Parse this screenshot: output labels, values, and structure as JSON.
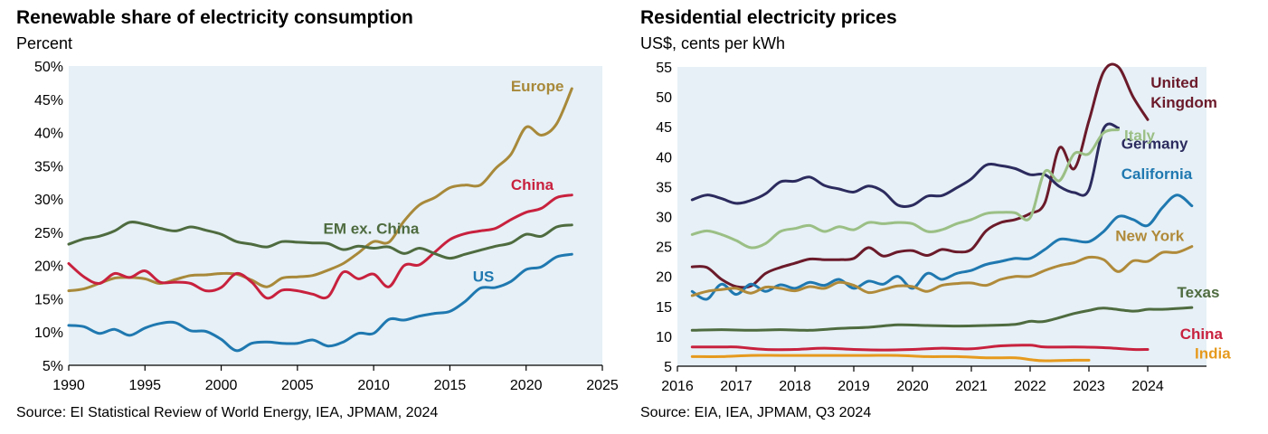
{
  "left": {
    "title": "Renewable share of electricity consumption",
    "subtitle": "Percent",
    "source": "Source: EI Statistical Review of World Energy, IEA, JPMAM, 2024"
  },
  "right": {
    "title": "Residential electricity prices",
    "subtitle": "US$, cents per kWh",
    "source": "Source: EIA, IEA, JPMAM, Q3 2024"
  },
  "colors": {
    "plot_bg": "#e6f0f6",
    "europe": "#a8893a",
    "china": "#c8213e",
    "em_ex_china": "#4e6b3f",
    "us": "#1f78b0",
    "united_kingdom": "#6b1a2a",
    "germany": "#2c2b5e",
    "italy": "#9bbf85",
    "california": "#1f78b0",
    "new_york": "#b08a3a",
    "texas": "#4e6b3f",
    "india": "#e69a1e"
  },
  "chart_data": [
    {
      "type": "line",
      "title": "Renewable share of electricity consumption",
      "ylabel": "Percent",
      "xlim": [
        1990,
        2025
      ],
      "ylim": [
        5,
        50
      ],
      "x_ticks": [
        1990,
        1995,
        2000,
        2005,
        2010,
        2015,
        2020,
        2025
      ],
      "x_tick_labels": [
        "1990",
        "1995",
        "2000",
        "2005",
        "2010",
        "2015",
        "2020",
        "2025"
      ],
      "y_ticks": [
        5,
        10,
        15,
        20,
        25,
        30,
        35,
        40,
        45,
        50
      ],
      "y_tick_labels": [
        "5%",
        "10%",
        "15%",
        "20%",
        "25%",
        "30%",
        "35%",
        "40%",
        "45%",
        "50%"
      ],
      "grid": false,
      "series": [
        {
          "name": "Europe",
          "color_key": "europe",
          "label_at": [
            2019,
            46.2
          ],
          "x": [
            1990,
            1991,
            1992,
            1993,
            1994,
            1995,
            1996,
            1997,
            1998,
            1999,
            2000,
            2001,
            2002,
            2003,
            2004,
            2005,
            2006,
            2007,
            2008,
            2009,
            2010,
            2011,
            2012,
            2013,
            2014,
            2015,
            2016,
            2017,
            2018,
            2019,
            2020,
            2021,
            2022,
            2023
          ],
          "y": [
            16.2,
            16.5,
            17.3,
            18.1,
            18.2,
            18.0,
            17.3,
            17.9,
            18.5,
            18.6,
            18.8,
            18.7,
            17.8,
            16.8,
            18.1,
            18.3,
            18.5,
            19.3,
            20.3,
            21.9,
            23.6,
            23.5,
            26.7,
            29.1,
            30.2,
            31.7,
            32.1,
            32.1,
            34.6,
            36.7,
            40.8,
            39.6,
            41.3,
            46.6
          ]
        },
        {
          "name": "China",
          "color_key": "china",
          "label_at": [
            2019,
            31.4
          ],
          "x": [
            1990,
            1991,
            1992,
            1993,
            1994,
            1995,
            1996,
            1997,
            1998,
            1999,
            2000,
            2001,
            2002,
            2003,
            2004,
            2005,
            2006,
            2007,
            2008,
            2009,
            2010,
            2011,
            2012,
            2013,
            2014,
            2015,
            2016,
            2017,
            2018,
            2019,
            2020,
            2021,
            2022,
            2023
          ],
          "y": [
            20.3,
            18.3,
            17.3,
            18.8,
            18.2,
            19.2,
            17.5,
            17.5,
            17.3,
            16.2,
            16.7,
            18.8,
            17.5,
            15.1,
            16.3,
            16.2,
            15.7,
            15.3,
            19.0,
            18.0,
            18.7,
            16.8,
            20.0,
            20.1,
            22.0,
            23.9,
            24.8,
            25.2,
            25.6,
            26.9,
            28.0,
            28.6,
            30.2,
            30.6
          ]
        },
        {
          "name": "EM ex. China",
          "color_key": "em_ex_china",
          "label_at": [
            2006.7,
            24.8
          ],
          "x": [
            1990,
            1991,
            1992,
            1993,
            1994,
            1995,
            1996,
            1997,
            1998,
            1999,
            2000,
            2001,
            2002,
            2003,
            2004,
            2005,
            2006,
            2007,
            2008,
            2009,
            2010,
            2011,
            2012,
            2013,
            2014,
            2015,
            2016,
            2017,
            2018,
            2019,
            2020,
            2021,
            2022,
            2023
          ],
          "y": [
            23.2,
            24.0,
            24.4,
            25.2,
            26.5,
            26.2,
            25.6,
            25.2,
            25.8,
            25.3,
            24.7,
            23.6,
            23.2,
            22.8,
            23.6,
            23.5,
            23.4,
            23.3,
            22.4,
            22.9,
            22.6,
            22.8,
            21.8,
            22.6,
            21.8,
            21.1,
            21.7,
            22.3,
            22.9,
            23.4,
            24.7,
            24.4,
            25.8,
            26.1
          ]
        },
        {
          "name": "US",
          "color_key": "us",
          "label_at": [
            2016.5,
            17.6
          ],
          "x": [
            1990,
            1991,
            1992,
            1993,
            1994,
            1995,
            1996,
            1997,
            1998,
            1999,
            2000,
            2001,
            2002,
            2003,
            2004,
            2005,
            2006,
            2007,
            2008,
            2009,
            2010,
            2011,
            2012,
            2013,
            2014,
            2015,
            2016,
            2017,
            2018,
            2019,
            2020,
            2021,
            2022,
            2023
          ],
          "y": [
            11.0,
            10.8,
            9.8,
            10.4,
            9.5,
            10.6,
            11.3,
            11.4,
            10.2,
            10.1,
            8.9,
            7.2,
            8.3,
            8.5,
            8.3,
            8.3,
            8.8,
            7.9,
            8.5,
            9.8,
            9.8,
            11.9,
            11.8,
            12.4,
            12.8,
            13.1,
            14.6,
            16.6,
            16.7,
            17.6,
            19.4,
            19.8,
            21.3,
            21.7
          ]
        }
      ]
    },
    {
      "type": "line",
      "title": "Residential electricity prices",
      "ylabel": "US$, cents per kWh",
      "xlim": [
        2016,
        2025
      ],
      "ylim": [
        5,
        55
      ],
      "x_ticks": [
        2016,
        2017,
        2018,
        2019,
        2020,
        2021,
        2022,
        2023,
        2024
      ],
      "x_tick_labels": [
        "2016",
        "2017",
        "2018",
        "2019",
        "2020",
        "2021",
        "2022",
        "2023",
        "2024"
      ],
      "y_ticks": [
        5,
        10,
        15,
        20,
        25,
        30,
        35,
        40,
        45,
        50,
        55
      ],
      "y_tick_labels": [
        "5",
        "10",
        "15",
        "20",
        "25",
        "30",
        "35",
        "40",
        "45",
        "50",
        "55"
      ],
      "grid": false,
      "series": [
        {
          "name": "United",
          "color_key": "united_kingdom",
          "label_at": [
            2024.05,
            51.5
          ],
          "x": [
            2016.25,
            2016.5,
            2016.75,
            2017.0,
            2017.25,
            2017.5,
            2017.75,
            2018.0,
            2018.25,
            2018.5,
            2018.75,
            2019.0,
            2019.25,
            2019.5,
            2019.75,
            2020.0,
            2020.25,
            2020.5,
            2020.75,
            2021.0,
            2021.25,
            2021.5,
            2021.75,
            2022.0,
            2022.25,
            2022.5,
            2022.75,
            2023.0,
            2023.25,
            2023.5,
            2023.75,
            2024.0
          ],
          "y": [
            21.6,
            21.5,
            19.5,
            18.3,
            18.4,
            20.5,
            21.5,
            22.2,
            22.9,
            22.8,
            22.8,
            23.0,
            24.8,
            23.4,
            24.1,
            24.3,
            23.5,
            24.5,
            24.1,
            24.5,
            27.6,
            29.0,
            29.5,
            30.5,
            32.3,
            41.5,
            38.0,
            46.0,
            54.2,
            55.0,
            50.0,
            46.2
          ]
        },
        {
          "name": "Kingdom",
          "color_key": "united_kingdom",
          "label_at": [
            2024.05,
            48.2
          ],
          "x": [],
          "y": []
        },
        {
          "name": "Germany",
          "color_key": "germany",
          "label_at": [
            2023.55,
            41.3
          ],
          "x": [
            2016.25,
            2016.5,
            2016.75,
            2017.0,
            2017.25,
            2017.5,
            2017.75,
            2018.0,
            2018.25,
            2018.5,
            2018.75,
            2019.0,
            2019.25,
            2019.5,
            2019.75,
            2020.0,
            2020.25,
            2020.5,
            2020.75,
            2021.0,
            2021.25,
            2021.5,
            2021.75,
            2022.0,
            2022.25,
            2022.5,
            2022.75,
            2023.0,
            2023.25,
            2023.5
          ],
          "y": [
            32.8,
            33.6,
            33.0,
            32.2,
            32.7,
            33.8,
            35.8,
            35.9,
            36.6,
            35.2,
            34.6,
            34.1,
            35.1,
            34.2,
            31.9,
            31.9,
            33.4,
            33.5,
            34.8,
            36.3,
            38.6,
            38.5,
            38.0,
            37.0,
            37.0,
            35.0,
            34.0,
            34.5,
            44.7,
            44.8
          ]
        },
        {
          "name": "Italy",
          "color_key": "italy",
          "label_at": [
            2023.6,
            42.7
          ],
          "x": [
            2016.25,
            2016.5,
            2016.75,
            2017.0,
            2017.25,
            2017.5,
            2017.75,
            2018.0,
            2018.25,
            2018.5,
            2018.75,
            2019.0,
            2019.25,
            2019.5,
            2019.75,
            2020.0,
            2020.25,
            2020.5,
            2020.75,
            2021.0,
            2021.25,
            2021.5,
            2021.75,
            2022.0,
            2022.25,
            2022.5,
            2022.75,
            2023.0,
            2023.25,
            2023.5
          ],
          "y": [
            27.0,
            27.6,
            27.0,
            26.0,
            24.8,
            25.5,
            27.5,
            28.0,
            28.5,
            27.5,
            28.3,
            27.8,
            29.0,
            28.8,
            29.0,
            28.8,
            27.5,
            27.8,
            28.8,
            29.5,
            30.5,
            30.7,
            30.6,
            29.8,
            37.5,
            36.0,
            40.5,
            40.5,
            44.0,
            44.5
          ]
        },
        {
          "name": "California",
          "color_key": "california",
          "label_at": [
            2023.55,
            36.3
          ],
          "x": [
            2016.25,
            2016.5,
            2016.75,
            2017.0,
            2017.25,
            2017.5,
            2017.75,
            2018.0,
            2018.25,
            2018.5,
            2018.75,
            2019.0,
            2019.25,
            2019.5,
            2019.75,
            2020.0,
            2020.25,
            2020.5,
            2020.75,
            2021.0,
            2021.25,
            2021.5,
            2021.75,
            2022.0,
            2022.25,
            2022.5,
            2022.75,
            2023.0,
            2023.25,
            2023.5,
            2023.75,
            2024.0,
            2024.25,
            2024.5,
            2024.75
          ],
          "y": [
            17.5,
            16.2,
            18.7,
            17.0,
            18.7,
            17.5,
            18.6,
            18.0,
            19.0,
            18.5,
            19.5,
            18.0,
            19.2,
            18.7,
            20.0,
            18.0,
            20.5,
            19.5,
            20.5,
            21.0,
            22.0,
            22.5,
            23.0,
            23.0,
            24.5,
            26.2,
            26.0,
            25.8,
            27.5,
            30.0,
            29.5,
            28.5,
            31.5,
            33.6,
            31.8
          ]
        },
        {
          "name": "New York",
          "color_key": "new_york",
          "label_at": [
            2023.45,
            25.9
          ],
          "x": [
            2016.25,
            2016.5,
            2016.75,
            2017.0,
            2017.25,
            2017.5,
            2017.75,
            2018.0,
            2018.25,
            2018.5,
            2018.75,
            2019.0,
            2019.25,
            2019.5,
            2019.75,
            2020.0,
            2020.25,
            2020.5,
            2020.75,
            2021.0,
            2021.25,
            2021.5,
            2021.75,
            2022.0,
            2022.25,
            2022.5,
            2022.75,
            2023.0,
            2023.25,
            2023.5,
            2023.75,
            2024.0,
            2024.25,
            2024.5,
            2024.75
          ],
          "y": [
            16.8,
            17.5,
            17.8,
            18.0,
            17.2,
            18.2,
            18.0,
            17.6,
            18.3,
            18.0,
            19.0,
            18.5,
            17.3,
            17.8,
            18.4,
            18.3,
            17.5,
            18.5,
            18.8,
            18.9,
            18.5,
            19.5,
            20.0,
            20.0,
            21.0,
            21.8,
            22.3,
            23.2,
            22.8,
            20.8,
            22.6,
            22.5,
            24.0,
            24.0,
            25.0
          ]
        },
        {
          "name": "Texas",
          "color_key": "texas",
          "label_at": [
            2024.5,
            16.5
          ],
          "x": [
            2016.25,
            2016.75,
            2017.25,
            2017.75,
            2018.25,
            2018.75,
            2019.25,
            2019.75,
            2020.25,
            2020.75,
            2021.25,
            2021.75,
            2022.0,
            2022.25,
            2022.75,
            2023.0,
            2023.25,
            2023.75,
            2024.0,
            2024.25,
            2024.75
          ],
          "y": [
            11.0,
            11.1,
            11.0,
            11.1,
            11.0,
            11.3,
            11.5,
            11.9,
            11.8,
            11.7,
            11.8,
            12.0,
            12.5,
            12.5,
            13.8,
            14.3,
            14.7,
            14.2,
            14.5,
            14.5,
            14.8
          ]
        },
        {
          "name": "China",
          "color_key": "china",
          "label_at": [
            2024.55,
            9.5
          ],
          "x": [
            2016.25,
            2016.75,
            2017.0,
            2017.5,
            2018.0,
            2018.5,
            2019.0,
            2019.5,
            2020.0,
            2020.5,
            2021.0,
            2021.5,
            2022.0,
            2022.25,
            2022.75,
            2023.25,
            2023.75,
            2024.0
          ],
          "y": [
            8.2,
            8.2,
            8.2,
            7.8,
            7.8,
            8.0,
            7.8,
            7.7,
            7.8,
            8.0,
            7.9,
            8.4,
            8.5,
            8.2,
            8.2,
            8.1,
            7.8,
            7.8
          ]
        },
        {
          "name": "India",
          "color_key": "india",
          "label_at": [
            2024.8,
            6.3
          ],
          "x": [
            2016.25,
            2016.75,
            2017.25,
            2017.75,
            2018.25,
            2018.75,
            2019.25,
            2019.75,
            2020.25,
            2020.75,
            2021.25,
            2021.75,
            2022.0,
            2022.25,
            2022.75,
            2023.0
          ],
          "y": [
            6.6,
            6.6,
            6.8,
            6.8,
            6.8,
            6.8,
            6.8,
            6.8,
            6.6,
            6.6,
            6.4,
            6.4,
            6.1,
            5.9,
            6.0,
            6.0
          ]
        }
      ]
    }
  ]
}
